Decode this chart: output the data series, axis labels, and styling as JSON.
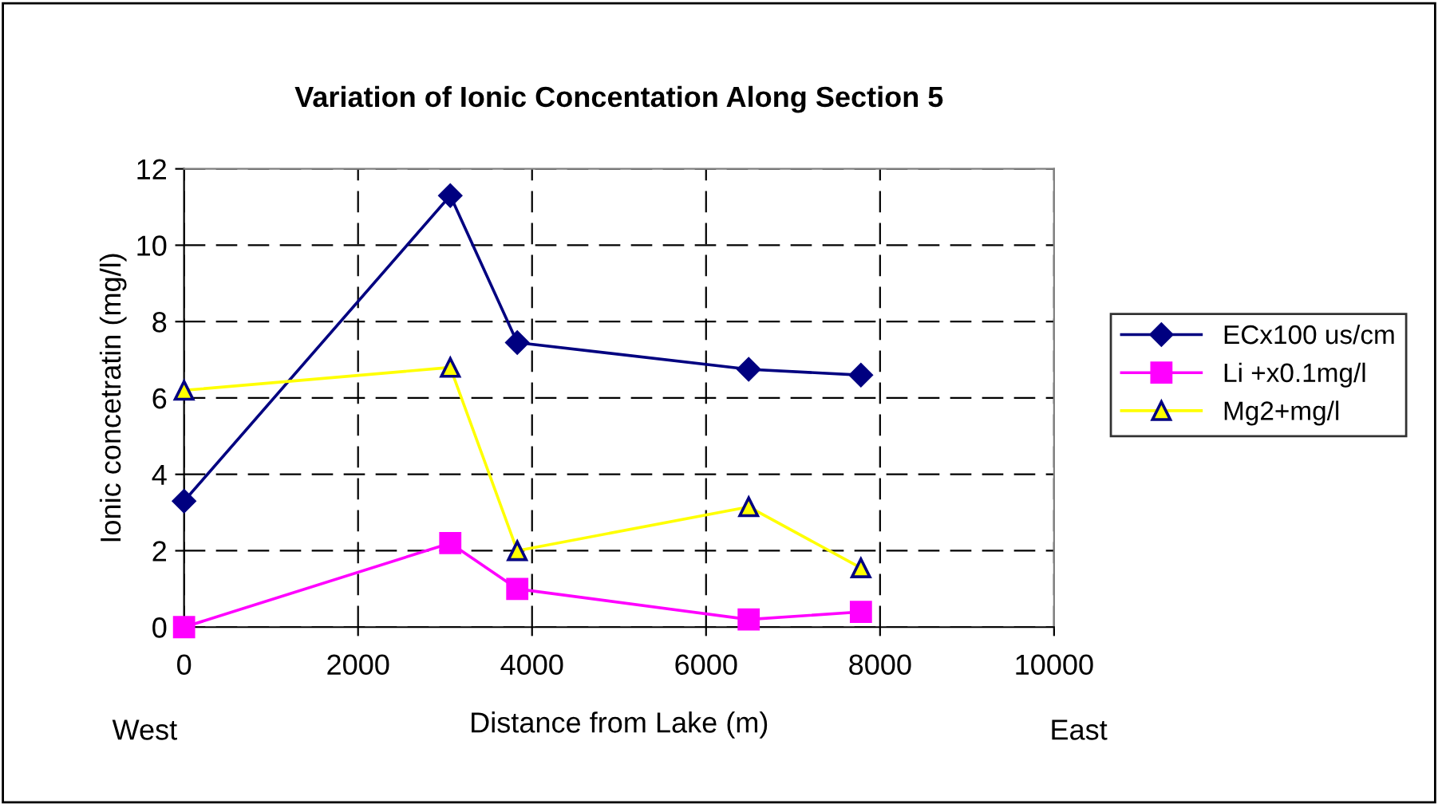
{
  "chart_data": {
    "type": "line",
    "title": "Variation of Ionic Concentation Along Section 5",
    "xlabel": "Distance from Lake (m)",
    "ylabel": "Ionic concetratin (mg/l)",
    "x": [
      0,
      3060,
      3830,
      6490,
      7780
    ],
    "series": [
      {
        "name": "ECx100 us/cm",
        "color": "#000080",
        "marker": "diamond",
        "values": [
          3.3,
          11.3,
          7.45,
          6.75,
          6.6
        ]
      },
      {
        "name": "Li +x0.1mg/l",
        "color": "#ff00ff",
        "marker": "square",
        "values": [
          0,
          2.2,
          1.0,
          0.2,
          0.4
        ]
      },
      {
        "name": "Mg2+mg/l",
        "color": "#ffff00",
        "marker": "triangle",
        "values": [
          6.2,
          6.8,
          2.0,
          3.15,
          1.55
        ]
      }
    ],
    "xlim": [
      0,
      10000
    ],
    "xticks": [
      0,
      2000,
      4000,
      6000,
      8000,
      10000
    ],
    "ylim": [
      0,
      12
    ],
    "yticks": [
      0,
      2,
      4,
      6,
      8,
      10,
      12
    ],
    "grid": true,
    "line_style": "solid",
    "legend": "right",
    "annotations": [
      "West",
      "East"
    ]
  }
}
